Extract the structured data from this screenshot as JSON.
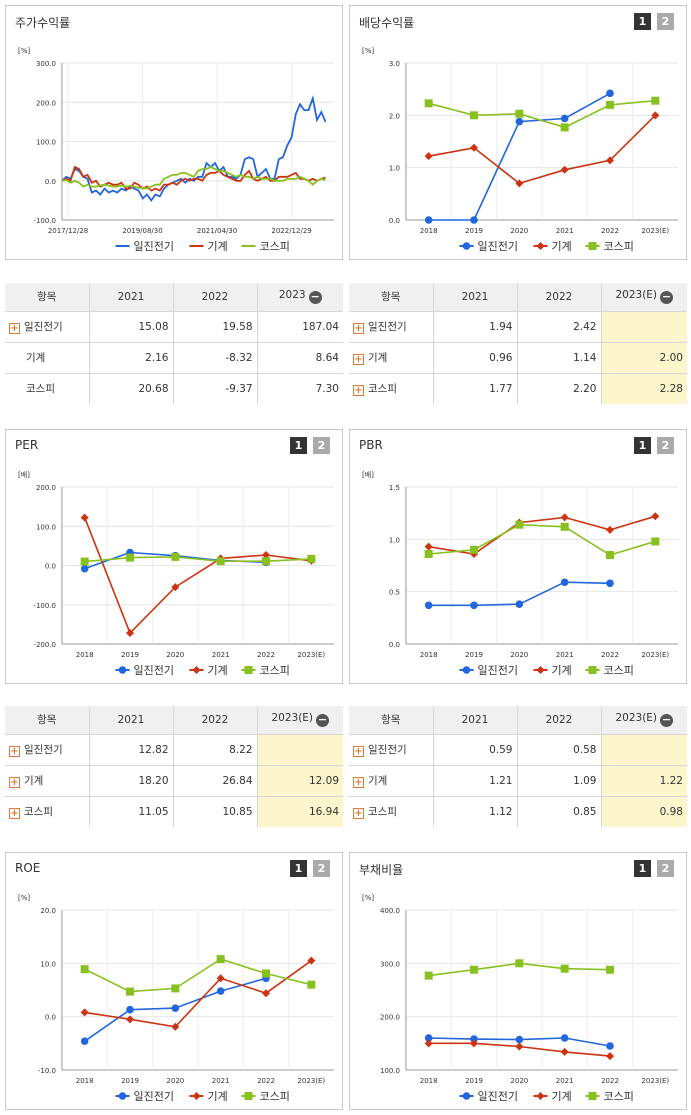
{
  "panels": {
    "stock": {
      "title": "주가수익률"
    },
    "dividend": {
      "title": "배당수익률",
      "pages": [
        "1",
        "2"
      ]
    },
    "per": {
      "title": "PER",
      "pages": [
        "1",
        "2"
      ]
    },
    "pbr": {
      "title": "PBR",
      "pages": [
        "1",
        "2"
      ]
    },
    "roe": {
      "title": "ROE",
      "pages": [
        "1",
        "2"
      ]
    },
    "debt": {
      "title": "부채비율",
      "pages": [
        "1",
        "2"
      ]
    }
  },
  "colors": {
    "blue": "#2266dd",
    "red": "#cc3311",
    "green": "#88c020"
  },
  "chart_data": [
    {
      "id": "stock",
      "type": "line",
      "title": "주가수익률",
      "unit": "[%]",
      "ylim": [
        -100,
        300
      ],
      "yticks": [
        "300.0",
        "200.0",
        "100.0",
        "0.0",
        "-100.0"
      ],
      "xticks": [
        "2017/12/28",
        "2019/08/30",
        "2021/04/30",
        "2022/12/29"
      ],
      "x_range": [
        0,
        64
      ],
      "series": [
        {
          "name": "일진전기",
          "color": "#2266dd",
          "values": [
            0,
            10,
            5,
            30,
            25,
            10,
            5,
            -30,
            -25,
            -35,
            -20,
            -30,
            -25,
            -30,
            -20,
            -25,
            -15,
            -20,
            -25,
            -45,
            -35,
            -50,
            -35,
            -40,
            -20,
            -10,
            -5,
            0,
            5,
            -5,
            5,
            0,
            10,
            10,
            45,
            35,
            45,
            25,
            35,
            10,
            10,
            5,
            15,
            55,
            60,
            55,
            10,
            20,
            30,
            5,
            5,
            55,
            60,
            90,
            110,
            170,
            195,
            180,
            180,
            210,
            155,
            175,
            150
          ]
        },
        {
          "name": "기계",
          "color": "#cc3311",
          "values": [
            0,
            5,
            0,
            35,
            30,
            10,
            15,
            -5,
            0,
            -15,
            -10,
            -5,
            -10,
            -10,
            -5,
            -20,
            -20,
            -5,
            -10,
            -20,
            -15,
            -25,
            -20,
            -25,
            -10,
            -10,
            -5,
            -10,
            0,
            5,
            0,
            5,
            5,
            0,
            15,
            20,
            20,
            25,
            15,
            10,
            5,
            0,
            0,
            15,
            25,
            5,
            0,
            5,
            10,
            0,
            0,
            10,
            10,
            10,
            15,
            20,
            5,
            5,
            0,
            5,
            0,
            5,
            8
          ]
        },
        {
          "name": "코스피",
          "color": "#88c020",
          "values": [
            0,
            2,
            -5,
            0,
            -5,
            -15,
            -10,
            -15,
            -15,
            -12,
            -10,
            -12,
            -15,
            -15,
            -12,
            -15,
            -13,
            -15,
            -18,
            -18,
            -20,
            -15,
            -10,
            -10,
            5,
            10,
            15,
            15,
            20,
            20,
            15,
            10,
            25,
            30,
            30,
            35,
            30,
            25,
            25,
            20,
            15,
            10,
            15,
            10,
            10,
            5,
            10,
            5,
            5,
            5,
            0,
            0,
            0,
            5,
            5,
            5,
            10,
            5,
            0,
            -10,
            0,
            5,
            2
          ]
        }
      ]
    },
    {
      "id": "dividend",
      "type": "line",
      "title": "배당수익률",
      "unit": "[%]",
      "categories": [
        "2018",
        "2019",
        "2020",
        "2021",
        "2022",
        "2023(E)"
      ],
      "ylim": [
        0,
        3
      ],
      "yticks": [
        "3.0",
        "2.0",
        "1.0",
        "0.0"
      ],
      "series": [
        {
          "name": "일진전기",
          "color": "#2266dd",
          "marker": "circle",
          "values": [
            0.0,
            0.0,
            1.88,
            1.94,
            2.42,
            null
          ]
        },
        {
          "name": "기계",
          "color": "#cc3311",
          "marker": "diamond",
          "values": [
            1.22,
            1.38,
            0.7,
            0.96,
            1.14,
            2.0
          ]
        },
        {
          "name": "코스피",
          "color": "#88c020",
          "marker": "square",
          "values": [
            2.23,
            2.0,
            2.03,
            1.77,
            2.2,
            2.28
          ]
        }
      ]
    },
    {
      "id": "per",
      "type": "line",
      "title": "PER",
      "unit": "[배]",
      "categories": [
        "2018",
        "2019",
        "2020",
        "2021",
        "2022",
        "2023(E)"
      ],
      "ylim": [
        -200,
        200
      ],
      "yticks": [
        "200.0",
        "100.0",
        "0.0",
        "-100.0",
        "-200.0"
      ],
      "series": [
        {
          "name": "일진전기",
          "color": "#2266dd",
          "marker": "circle",
          "values": [
            -8,
            33,
            25,
            12.82,
            8.22,
            null
          ]
        },
        {
          "name": "기계",
          "color": "#cc3311",
          "marker": "diamond",
          "values": [
            122,
            -172,
            -55,
            18.2,
            26.84,
            12.09
          ]
        },
        {
          "name": "코스피",
          "color": "#88c020",
          "marker": "square",
          "values": [
            10,
            20,
            22,
            11.05,
            10.85,
            16.94
          ]
        }
      ]
    },
    {
      "id": "pbr",
      "type": "line",
      "title": "PBR",
      "unit": "[배]",
      "categories": [
        "2018",
        "2019",
        "2020",
        "2021",
        "2022",
        "2023(E)"
      ],
      "ylim": [
        0,
        1.5
      ],
      "yticks": [
        "1.5",
        "1.0",
        "0.5",
        "0.0"
      ],
      "series": [
        {
          "name": "일진전기",
          "color": "#2266dd",
          "marker": "circle",
          "values": [
            0.37,
            0.37,
            0.38,
            0.59,
            0.58,
            null
          ]
        },
        {
          "name": "기계",
          "color": "#cc3311",
          "marker": "diamond",
          "values": [
            0.93,
            0.86,
            1.16,
            1.21,
            1.09,
            1.22
          ]
        },
        {
          "name": "코스피",
          "color": "#88c020",
          "marker": "square",
          "values": [
            0.86,
            0.9,
            1.14,
            1.12,
            0.85,
            0.98
          ]
        }
      ]
    },
    {
      "id": "roe",
      "type": "line",
      "title": "ROE",
      "unit": "[%]",
      "categories": [
        "2018",
        "2019",
        "2020",
        "2021",
        "2022",
        "2023(E)"
      ],
      "ylim": [
        -10,
        20
      ],
      "yticks": [
        "20.0",
        "10.0",
        "0.0",
        "-10.0"
      ],
      "series": [
        {
          "name": "일진전기",
          "color": "#2266dd",
          "marker": "circle",
          "values": [
            -4.6,
            1.3,
            1.6,
            4.8,
            7.2,
            null
          ]
        },
        {
          "name": "기계",
          "color": "#cc3311",
          "marker": "diamond",
          "values": [
            0.8,
            -0.5,
            -1.9,
            7.2,
            4.4,
            10.5
          ]
        },
        {
          "name": "코스피",
          "color": "#88c020",
          "marker": "square",
          "values": [
            8.9,
            4.7,
            5.3,
            10.8,
            8.1,
            6.0
          ]
        }
      ]
    },
    {
      "id": "debt",
      "type": "line",
      "title": "부채비율",
      "unit": "[%]",
      "categories": [
        "2018",
        "2019",
        "2020",
        "2021",
        "2022",
        "2023(E)"
      ],
      "ylim": [
        100,
        400
      ],
      "yticks": [
        "400.0",
        "300.0",
        "200.0",
        "100.0"
      ],
      "series": [
        {
          "name": "일진전기",
          "color": "#2266dd",
          "marker": "circle",
          "values": [
            160,
            158,
            157,
            160,
            145,
            null
          ]
        },
        {
          "name": "기계",
          "color": "#cc3311",
          "marker": "diamond",
          "values": [
            150,
            150,
            144,
            134,
            126,
            null
          ]
        },
        {
          "name": "코스피",
          "color": "#88c020",
          "marker": "square",
          "values": [
            277,
            288,
            300,
            290,
            288,
            null
          ]
        }
      ]
    }
  ],
  "tables": [
    {
      "id": "stock-table",
      "headers": [
        "항목",
        "2021",
        "2022",
        "2023"
      ],
      "collapse_icon": "minus-circle-icon",
      "rows": [
        {
          "name": "일진전기",
          "expandable": true,
          "values": [
            "15.08",
            "19.58",
            "187.04"
          ]
        },
        {
          "name": "기계",
          "expandable": false,
          "values": [
            "2.16",
            "-8.32",
            "8.64"
          ]
        },
        {
          "name": "코스피",
          "expandable": false,
          "values": [
            "20.68",
            "-9.37",
            "7.30"
          ]
        }
      ]
    },
    {
      "id": "dividend-table",
      "headers": [
        "항목",
        "2021",
        "2022",
        "2023(E)"
      ],
      "collapse_icon": "minus-circle-icon",
      "rows": [
        {
          "name": "일진전기",
          "expandable": true,
          "values": [
            "1.94",
            "2.42",
            ""
          ]
        },
        {
          "name": "기계",
          "expandable": true,
          "values": [
            "0.96",
            "1.14",
            "2.00"
          ]
        },
        {
          "name": "코스피",
          "expandable": true,
          "values": [
            "1.77",
            "2.20",
            "2.28"
          ]
        }
      ]
    },
    {
      "id": "per-table",
      "headers": [
        "항목",
        "2021",
        "2022",
        "2023(E)"
      ],
      "collapse_icon": "minus-circle-icon",
      "rows": [
        {
          "name": "일진전기",
          "expandable": true,
          "values": [
            "12.82",
            "8.22",
            ""
          ]
        },
        {
          "name": "기계",
          "expandable": true,
          "values": [
            "18.20",
            "26.84",
            "12.09"
          ]
        },
        {
          "name": "코스피",
          "expandable": true,
          "values": [
            "11.05",
            "10.85",
            "16.94"
          ]
        }
      ]
    },
    {
      "id": "pbr-table",
      "headers": [
        "항목",
        "2021",
        "2022",
        "2023(E)"
      ],
      "collapse_icon": "minus-circle-icon",
      "rows": [
        {
          "name": "일진전기",
          "expandable": true,
          "values": [
            "0.59",
            "0.58",
            ""
          ]
        },
        {
          "name": "기계",
          "expandable": true,
          "values": [
            "1.21",
            "1.09",
            "1.22"
          ]
        },
        {
          "name": "코스피",
          "expandable": true,
          "values": [
            "1.12",
            "0.85",
            "0.98"
          ]
        }
      ]
    }
  ]
}
